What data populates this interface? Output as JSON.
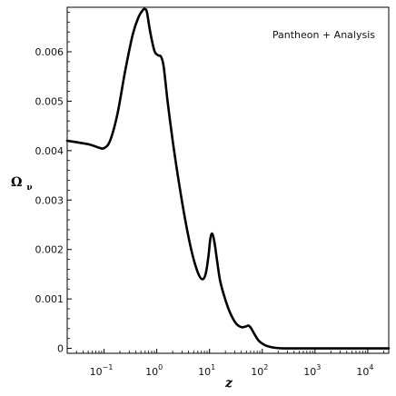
{
  "chart_data": {
    "type": "line",
    "x_scale": "log",
    "xlim": [
      0.02,
      25000
    ],
    "ylim": [
      -0.0001,
      0.0069
    ],
    "xlabel": "z",
    "ylabel": "Ω",
    "ylabel_subscript": "ν",
    "legend": "Pantheon + Analysis",
    "legend_position": "top-right",
    "grid": false,
    "x_ticks": [
      {
        "value": 0.1,
        "base": "10",
        "exp": "−1"
      },
      {
        "value": 1,
        "base": "10",
        "exp": "0"
      },
      {
        "value": 10,
        "base": "10",
        "exp": "1"
      },
      {
        "value": 100,
        "base": "10",
        "exp": "2"
      },
      {
        "value": 1000,
        "base": "10",
        "exp": "3"
      },
      {
        "value": 10000,
        "base": "10",
        "exp": "4"
      }
    ],
    "y_ticks": [
      "0",
      "0.001",
      "0.002",
      "0.003",
      "0.004",
      "0.005",
      "0.006"
    ],
    "series": [
      {
        "x": [
          0.02,
          0.05,
          0.08,
          0.1,
          0.13,
          0.18,
          0.25,
          0.35,
          0.45,
          0.55,
          0.6,
          0.65,
          0.75,
          0.9,
          1.05,
          1.2,
          1.35,
          1.6,
          2.0,
          2.5,
          3.2,
          4.0,
          5.0,
          6.3,
          7.5,
          8.5,
          9.5,
          10.3,
          11.0,
          11.8,
          12.8,
          14.0,
          16.0,
          20.0,
          25.0,
          32.0,
          40.0,
          48.0,
          55.0,
          62.0,
          70.0,
          85.0,
          110.0,
          140.0,
          180.0,
          250.0,
          400.0,
          1000.0,
          10000.0,
          25000.0
        ],
        "y": [
          0.0042,
          0.00413,
          0.00406,
          0.00405,
          0.0042,
          0.00475,
          0.0056,
          0.00635,
          0.0067,
          0.00685,
          0.00686,
          0.0068,
          0.0064,
          0.00602,
          0.00593,
          0.0059,
          0.0057,
          0.005,
          0.0042,
          0.0035,
          0.0028,
          0.00225,
          0.0018,
          0.00148,
          0.0014,
          0.00152,
          0.00185,
          0.0022,
          0.00232,
          0.00226,
          0.00205,
          0.00175,
          0.00135,
          0.00098,
          0.0007,
          0.0005,
          0.00043,
          0.00044,
          0.00046,
          0.0004,
          0.0003,
          0.00016,
          7e-05,
          3e-05,
          1e-05,
          0.0,
          0.0,
          0.0,
          0.0,
          0.0
        ]
      }
    ]
  }
}
